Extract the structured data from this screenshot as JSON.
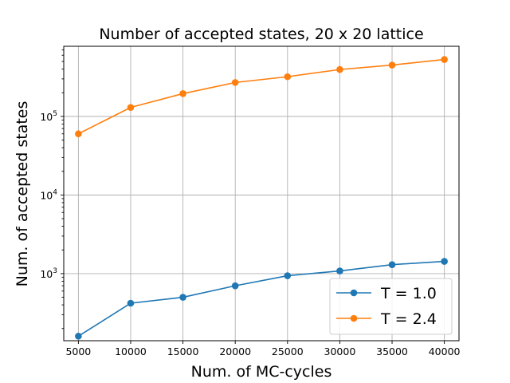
{
  "chart_data": {
    "type": "line",
    "title": "Number of accepted states, 20 x 20 lattice",
    "xlabel": "Num. of MC-cycles",
    "ylabel": "Num. of accepted states",
    "x": [
      5000,
      10000,
      15000,
      20000,
      25000,
      30000,
      35000,
      40000
    ],
    "x_tick_labels": [
      "5000",
      "10000",
      "15000",
      "20000",
      "25000",
      "30000",
      "35000",
      "40000"
    ],
    "xlim": [
      3600,
      41400
    ],
    "y_scale": "log",
    "ylim": [
      140,
      780000
    ],
    "y_major_ticks": [
      {
        "value": 1000,
        "base": "10",
        "exp": "3"
      },
      {
        "value": 10000,
        "base": "10",
        "exp": "4"
      },
      {
        "value": 100000,
        "base": "10",
        "exp": "5"
      }
    ],
    "grid": true,
    "legend_position": "lower-right",
    "series": [
      {
        "name": "T = 1.0",
        "color": "#1f77b4",
        "values": [
          160,
          420,
          500,
          700,
          940,
          1080,
          1300,
          1430
        ]
      },
      {
        "name": "T = 2.4",
        "color": "#ff7f0e",
        "values": [
          60000,
          130000,
          195000,
          270000,
          320000,
          395000,
          450000,
          530000
        ]
      }
    ]
  }
}
